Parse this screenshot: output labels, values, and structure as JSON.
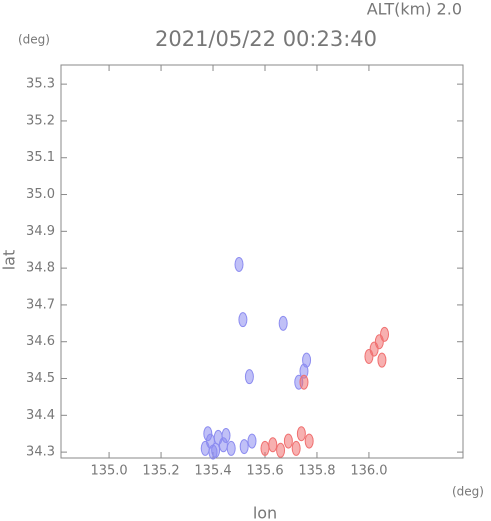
{
  "chart_data": {
    "type": "scatter",
    "title": "2021/05/22 00:23:40",
    "altitude_label": "ALT(km) 2.0",
    "y_unit": "(deg)",
    "x_unit": "(deg)",
    "x_label": "lon",
    "y_label": "lat",
    "xlim": [
      134.815,
      136.362
    ],
    "ylim": [
      34.284,
      35.352
    ],
    "xticks": [
      {
        "value": 135,
        "label": "135.0"
      },
      135.2,
      135.4,
      135.6,
      135.8,
      {
        "value": 136,
        "label": "136.0"
      }
    ],
    "yticks": [
      34.3,
      34.4,
      34.5,
      34.6,
      34.7,
      34.8,
      34.9,
      {
        "value": 35,
        "label": "35.0"
      },
      35.1,
      35.2,
      35.3
    ],
    "series": [
      {
        "color": "#8c8cf0",
        "x": [
          135.37,
          135.39,
          135.41,
          135.44,
          135.38,
          135.42,
          135.47,
          135.52,
          135.55,
          135.5,
          135.515,
          135.54,
          135.73,
          135.75,
          135.76,
          135.67,
          135.45,
          135.4
        ],
        "values": [
          34.31,
          34.33,
          34.305,
          34.32,
          34.35,
          34.34,
          34.31,
          34.315,
          34.33,
          34.81,
          34.66,
          34.505,
          34.49,
          34.52,
          34.55,
          34.65,
          34.345,
          34.3
        ]
      },
      {
        "color": "#f07070",
        "x": [
          135.6,
          135.63,
          135.66,
          135.69,
          135.72,
          135.74,
          135.77,
          135.75,
          136.0,
          136.02,
          136.04,
          136.06,
          136.05
        ],
        "values": [
          34.31,
          34.32,
          34.305,
          34.33,
          34.31,
          34.35,
          34.33,
          34.49,
          34.56,
          34.58,
          34.6,
          34.62,
          34.55
        ]
      }
    ]
  }
}
